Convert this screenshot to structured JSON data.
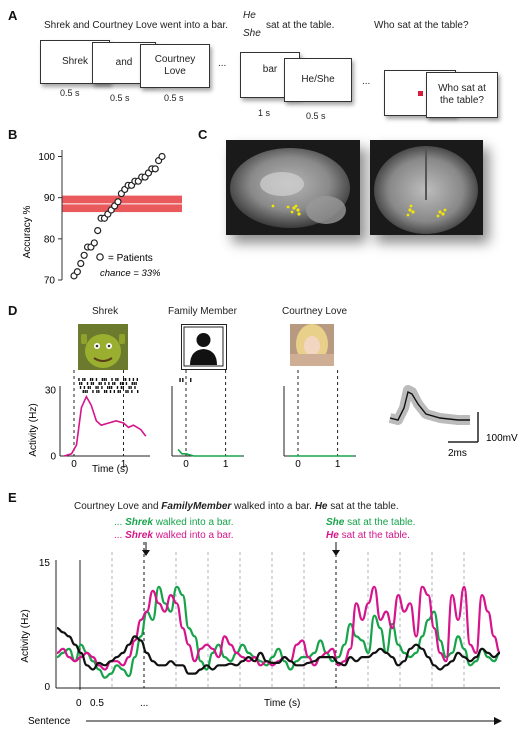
{
  "panels": {
    "a": "A",
    "b": "B",
    "c": "C",
    "d": "D",
    "e": "E"
  },
  "panel_a": {
    "sentence1": "Shrek and Courtney Love went into a bar.",
    "pronoun_top": "He",
    "pronoun_bottom": "She",
    "sentence2_rest": "sat at the table.",
    "question": "Who sat at the table?",
    "cards": [
      {
        "text": "Shrek",
        "duration": "0.5 s"
      },
      {
        "text": "and",
        "duration": "0.5 s"
      },
      {
        "text": "Courtney Love",
        "duration": "0.5 s"
      },
      {
        "text": "bar",
        "duration": "1 s"
      },
      {
        "text": "He/She",
        "duration": "0.5 s"
      },
      {
        "text": "Who sat at the table?",
        "duration": ""
      }
    ],
    "ellipsis": "..."
  },
  "panel_b": {
    "chart_data": {
      "type": "scatter",
      "ylabel": "Accuracy %",
      "ylim": [
        70,
        100
      ],
      "yticks": [
        70,
        80,
        90,
        100
      ],
      "values": [
        71,
        72,
        74,
        76,
        78,
        78,
        79,
        82,
        85,
        85,
        86,
        87,
        88,
        89,
        91,
        92,
        93,
        93,
        94,
        94,
        95,
        95,
        96,
        97,
        97,
        99,
        100
      ],
      "band": {
        "center": 88.5,
        "low": 86.5,
        "high": 90.5,
        "color": "#e8474a"
      },
      "legend": "= Patients",
      "note": "chance = 33%"
    }
  },
  "panel_d": {
    "units": [
      {
        "name": "Shrek"
      },
      {
        "name": "Family Member"
      },
      {
        "name": "Courtney Love"
      }
    ],
    "chart_data": {
      "type": "line",
      "ylabel": "Activity (Hz)",
      "xlabel": "Time (s)",
      "ylim": [
        0,
        30
      ],
      "yticks": [
        0,
        30
      ],
      "xticks": [
        0,
        1
      ],
      "series": [
        {
          "values": [
            [
              -0.2,
              0
            ],
            [
              -0.05,
              1
            ],
            [
              0.05,
              5
            ],
            [
              0.15,
              22
            ],
            [
              0.25,
              27
            ],
            [
              0.35,
              23
            ],
            [
              0.45,
              16
            ],
            [
              0.55,
              14
            ],
            [
              0.7,
              15
            ],
            [
              0.85,
              16
            ],
            [
              1.0,
              15
            ],
            [
              1.1,
              13
            ],
            [
              1.2,
              14
            ],
            [
              1.35,
              12
            ],
            [
              1.45,
              9
            ]
          ]
        },
        {
          "values": [
            [
              -0.2,
              3
            ],
            [
              -0.1,
              1
            ],
            [
              0,
              1
            ],
            [
              0.2,
              0
            ],
            [
              0.5,
              0
            ],
            [
              1.0,
              0
            ],
            [
              1.4,
              0
            ]
          ]
        },
        {
          "values": [
            [
              -0.2,
              0
            ],
            [
              1.4,
              0
            ]
          ]
        }
      ],
      "waveform_scale": "100mV",
      "waveform_time": "2ms"
    }
  },
  "panel_e": {
    "header_prefix": "Courtney Love and ",
    "header_bold": "FamilyMember",
    "header_mid": " walked into a bar. ",
    "header_he": "He",
    "header_end": " sat at the table.",
    "green_line1_bold": "Shrek",
    "green_line1_rest": " walked into a bar.",
    "magenta_line1_bold": "Shrek",
    "magenta_line1_rest": " walked into a bar.",
    "green_line2_bold": "She",
    "green_line2_rest": " sat at the table.",
    "magenta_line2_bold": "He",
    "magenta_line2_rest": " sat at the table.",
    "ellipsis": "...",
    "chart_data": {
      "type": "line",
      "ylabel": "Activity (Hz)",
      "xlabel": "Time (s)",
      "ylim": [
        0,
        15
      ],
      "yticks": [
        0,
        15
      ],
      "xtick_labels": [
        "0",
        "0.5",
        "..."
      ],
      "footer": "Sentence",
      "series": [
        {
          "color": "#16a34a",
          "values": [
            3.5,
            4,
            4.5,
            3,
            5,
            4,
            3,
            2,
            1,
            1.5,
            2.5,
            2,
            1.2,
            3.5,
            6,
            9,
            8,
            12,
            10,
            9,
            12,
            11,
            7,
            6,
            3,
            2,
            4,
            5,
            3.5,
            3,
            4,
            5,
            4,
            3.5,
            3,
            2.5,
            3.5,
            4.5,
            3,
            2,
            3,
            3.5,
            3.5,
            4,
            5.5,
            4,
            3,
            3.5,
            5,
            7.5,
            6,
            5.5,
            4,
            8.5,
            7,
            4,
            7.5,
            5,
            4,
            3.5,
            4,
            6,
            8,
            9,
            5.5,
            3.5,
            4,
            6,
            4.5,
            2.5,
            3,
            4.5,
            3.5,
            3,
            4
          ]
        },
        {
          "color": "#d6148b",
          "values": [
            4,
            4.5,
            3.5,
            3,
            3.5,
            4,
            3.5,
            2.5,
            2,
            3,
            3,
            2.5,
            3.5,
            5.5,
            8,
            9,
            11.5,
            10,
            9,
            11,
            10,
            7,
            5,
            3,
            4.5,
            5,
            4.5,
            3.5,
            6,
            5,
            4,
            3.5,
            3,
            3.5,
            2.5,
            3,
            2.5,
            3,
            3.5,
            3,
            5,
            5.5,
            3.5,
            2.5,
            3.5,
            4,
            4.5,
            2.5,
            3,
            4.5,
            10,
            8,
            10,
            12,
            8,
            9,
            7,
            11,
            9,
            10,
            6,
            12,
            11,
            7,
            4,
            3,
            11,
            8,
            12,
            5,
            4,
            11,
            9,
            6,
            4
          ]
        },
        {
          "color": "#111111",
          "values": [
            7,
            6.5,
            6,
            5,
            4,
            2.5,
            2,
            2.8,
            2.5,
            3,
            3.5,
            4,
            5,
            6,
            5.5,
            4,
            3,
            2.5,
            2.5,
            3,
            2.5,
            2.5,
            1.5,
            1.5,
            2,
            2.5,
            2,
            2.5,
            2.5,
            2.7,
            2.5,
            3,
            3.5,
            3,
            4,
            3,
            2.8,
            2.8,
            3.5,
            3,
            2.5,
            2.5,
            2.8,
            3,
            3.5,
            3.5,
            3.5,
            2.8,
            2.5,
            3.5,
            3,
            3.5,
            3.5,
            4,
            4.5,
            4,
            3.5,
            2.5,
            3,
            4.5,
            5,
            4.5,
            3.5,
            2.5,
            2,
            2.5,
            3,
            4,
            3.5,
            3,
            3.5,
            4.5,
            4,
            3.5,
            4
          ]
        }
      ]
    }
  }
}
